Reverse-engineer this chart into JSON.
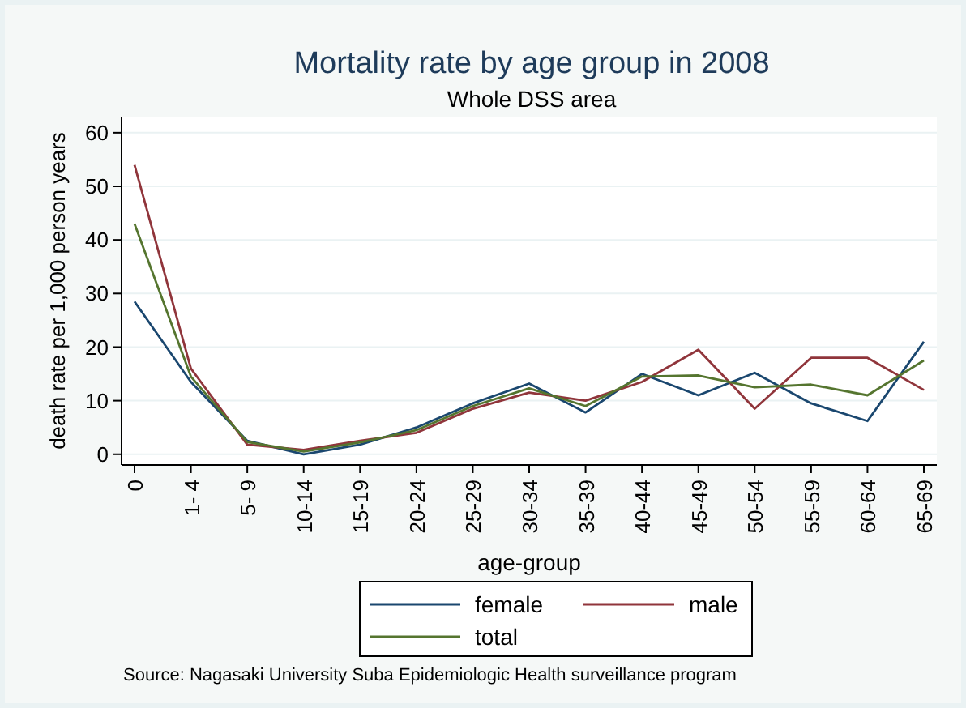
{
  "chart_data": {
    "type": "line",
    "title": "Mortality rate by age group in 2008",
    "subtitle": "Whole DSS area",
    "xlabel": "age-group",
    "ylabel": "death rate per 1,000 person years",
    "categories": [
      "0",
      "1- 4",
      "5- 9",
      "10-14",
      "15-19",
      "20-24",
      "25-29",
      "30-34",
      "35-39",
      "40-44",
      "45-49",
      "50-54",
      "55-59",
      "60-64",
      "65-69"
    ],
    "series": [
      {
        "name": "female",
        "color": "#1a476f",
        "values": [
          28.5,
          13.5,
          2.5,
          0,
          1.8,
          5,
          9.5,
          13.2,
          7.8,
          15,
          11,
          15.2,
          9.5,
          6.2,
          21
        ]
      },
      {
        "name": "male",
        "color": "#90353b",
        "values": [
          54,
          16,
          1.8,
          0.8,
          2.5,
          4,
          8.5,
          11.5,
          10,
          13.5,
          19.5,
          8.5,
          18,
          18,
          12
        ]
      },
      {
        "name": "total",
        "color": "#55752f",
        "values": [
          43,
          14.5,
          2.3,
          0.5,
          2.2,
          4.5,
          9,
          12.3,
          9,
          14.5,
          14.7,
          12.5,
          13,
          11,
          17.5
        ]
      }
    ],
    "ylim": [
      -2,
      63
    ],
    "yticks": [
      0,
      10,
      20,
      30,
      40,
      50,
      60
    ],
    "grid": "y",
    "legend": "bottom",
    "marker": "none",
    "line_style": "solid",
    "annotations": [
      "Source:  Nagasaki University Suba Epidemiologic Health surveillance program"
    ]
  }
}
